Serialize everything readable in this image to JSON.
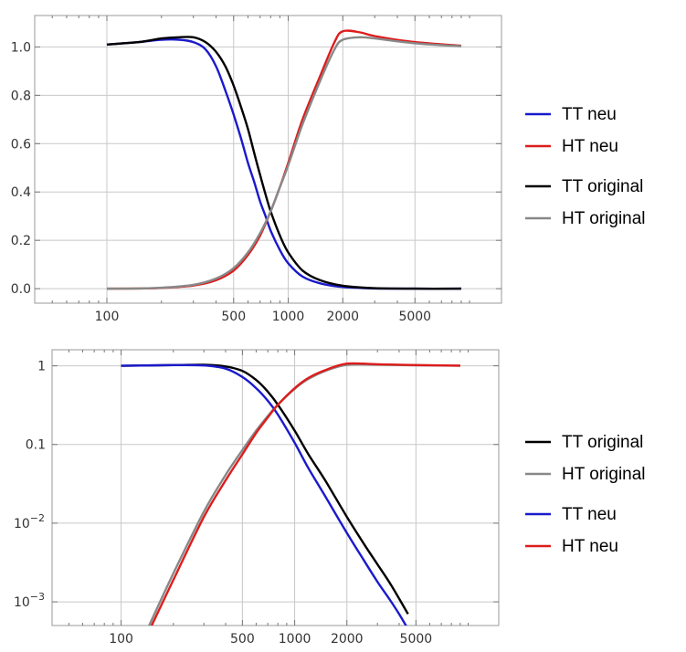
{
  "chart_data": [
    {
      "type": "line",
      "xscale": "log",
      "yscale": "linear",
      "xlim": [
        40,
        15000
      ],
      "ylim": [
        -0.06,
        1.13
      ],
      "xticks": [
        {
          "v": 100,
          "label": "100"
        },
        {
          "v": 500,
          "label": "500"
        },
        {
          "v": 1000,
          "label": "1000"
        },
        {
          "v": 2000,
          "label": "2000"
        },
        {
          "v": 5000,
          "label": "5000"
        }
      ],
      "yticks": [
        {
          "v": 0.0,
          "label": "0.0"
        },
        {
          "v": 0.2,
          "label": "0.2"
        },
        {
          "v": 0.4,
          "label": "0.4"
        },
        {
          "v": 0.6,
          "label": "0.6"
        },
        {
          "v": 0.8,
          "label": "0.8"
        },
        {
          "v": 1.0,
          "label": "1.0"
        }
      ],
      "grid": true,
      "legend_placement": "right",
      "legend": [
        "TT neu",
        "HT neu",
        "TT original",
        "HT original"
      ],
      "series": [
        {
          "name": "TT neu",
          "color": "#1a1acc",
          "x": [
            100,
            150,
            200,
            250,
            300,
            350,
            400,
            450,
            500,
            550,
            600,
            650,
            700,
            750,
            800,
            900,
            1000,
            1200,
            1500,
            2000,
            3000,
            5000,
            9000
          ],
          "y": [
            1.01,
            1.02,
            1.03,
            1.03,
            1.02,
            0.99,
            0.92,
            0.82,
            0.72,
            0.62,
            0.52,
            0.44,
            0.36,
            0.3,
            0.24,
            0.16,
            0.105,
            0.05,
            0.022,
            0.007,
            0.001,
            0.0,
            0.0
          ]
        },
        {
          "name": "HT neu",
          "color": "#dd1c1c",
          "x": [
            100,
            150,
            200,
            300,
            400,
            500,
            600,
            700,
            800,
            900,
            1000,
            1200,
            1500,
            1800,
            2000,
            2500,
            3000,
            5000,
            9000
          ],
          "y": [
            0.0,
            0.001,
            0.003,
            0.013,
            0.035,
            0.075,
            0.14,
            0.22,
            0.32,
            0.42,
            0.52,
            0.7,
            0.88,
            1.02,
            1.065,
            1.06,
            1.045,
            1.02,
            1.005
          ]
        },
        {
          "name": "TT original",
          "color": "#000000",
          "x": [
            100,
            150,
            200,
            250,
            300,
            350,
            400,
            450,
            500,
            550,
            600,
            650,
            700,
            750,
            800,
            900,
            1000,
            1200,
            1500,
            2000,
            3000,
            5000,
            9000
          ],
          "y": [
            1.01,
            1.02,
            1.035,
            1.04,
            1.04,
            1.02,
            0.98,
            0.92,
            0.84,
            0.75,
            0.66,
            0.56,
            0.47,
            0.39,
            0.32,
            0.22,
            0.15,
            0.075,
            0.035,
            0.012,
            0.002,
            0.0,
            0.0
          ]
        },
        {
          "name": "HT original",
          "color": "#888888",
          "x": [
            100,
            150,
            200,
            300,
            400,
            500,
            600,
            700,
            800,
            900,
            1000,
            1200,
            1500,
            1800,
            2000,
            2500,
            3000,
            5000,
            9000
          ],
          "y": [
            0.0,
            0.001,
            0.004,
            0.016,
            0.042,
            0.085,
            0.15,
            0.23,
            0.32,
            0.42,
            0.51,
            0.68,
            0.86,
            0.99,
            1.03,
            1.04,
            1.035,
            1.015,
            1.003
          ]
        }
      ]
    },
    {
      "type": "line",
      "xscale": "log",
      "yscale": "log",
      "xlim": [
        40,
        15000
      ],
      "ylim": [
        0.0005,
        1.6
      ],
      "xticks": [
        {
          "v": 100,
          "label": "100"
        },
        {
          "v": 500,
          "label": "500"
        },
        {
          "v": 1000,
          "label": "1000"
        },
        {
          "v": 2000,
          "label": "2000"
        },
        {
          "v": 5000,
          "label": "5000"
        }
      ],
      "yticks": [
        {
          "v": 1,
          "label": "1",
          "sup": ""
        },
        {
          "v": 0.1,
          "label": "0.1",
          "sup": ""
        },
        {
          "v": 0.01,
          "label": "10",
          "sup": "−2"
        },
        {
          "v": 0.001,
          "label": "10",
          "sup": "−3"
        }
      ],
      "grid": true,
      "legend_placement": "right",
      "legend": [
        "TT original",
        "HT original",
        "TT neu",
        "HT neu"
      ],
      "series": [
        {
          "name": "TT original",
          "color": "#000000",
          "x": [
            100,
            200,
            300,
            400,
            500,
            600,
            700,
            800,
            1000,
            1200,
            1500,
            2000,
            2500,
            3000,
            3500,
            4000,
            4500
          ],
          "y": [
            1.0,
            1.02,
            1.03,
            0.98,
            0.86,
            0.66,
            0.47,
            0.32,
            0.15,
            0.075,
            0.035,
            0.012,
            0.0055,
            0.003,
            0.0018,
            0.0011,
            0.0007
          ]
        },
        {
          "name": "HT original",
          "color": "#888888",
          "x": [
            145,
            200,
            300,
            400,
            500,
            600,
            700,
            800,
            1000,
            1200,
            1500,
            2000,
            3000,
            5000,
            9000
          ],
          "y": [
            0.0005,
            0.0023,
            0.014,
            0.041,
            0.085,
            0.15,
            0.23,
            0.32,
            0.51,
            0.68,
            0.86,
            1.03,
            1.035,
            1.015,
            1.003
          ]
        },
        {
          "name": "TT neu",
          "color": "#1a1acc",
          "x": [
            100,
            200,
            300,
            400,
            500,
            600,
            700,
            800,
            1000,
            1200,
            1500,
            2000,
            2500,
            3000,
            3500,
            4000,
            4500
          ],
          "y": [
            1.0,
            1.02,
            1.01,
            0.92,
            0.72,
            0.52,
            0.36,
            0.24,
            0.105,
            0.05,
            0.022,
            0.0075,
            0.0034,
            0.0018,
            0.0011,
            0.0007,
            0.00045
          ]
        },
        {
          "name": "HT neu",
          "color": "#dd1c1c",
          "x": [
            150,
            200,
            300,
            400,
            500,
            600,
            700,
            800,
            1000,
            1200,
            1500,
            2000,
            3000,
            5000,
            9000
          ],
          "y": [
            0.0005,
            0.0019,
            0.012,
            0.035,
            0.075,
            0.14,
            0.22,
            0.32,
            0.52,
            0.7,
            0.88,
            1.065,
            1.045,
            1.02,
            1.005
          ]
        }
      ]
    }
  ]
}
